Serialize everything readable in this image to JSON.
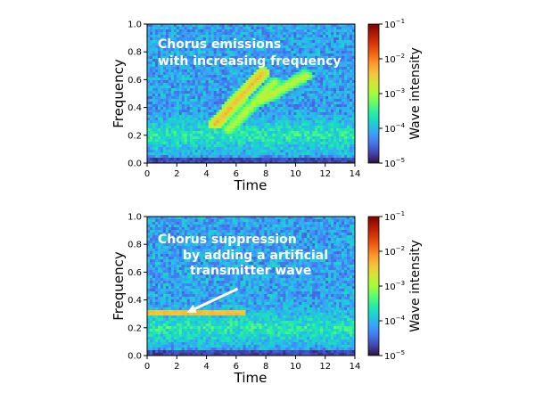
{
  "colors": {
    "colormap": [
      "#30123b",
      "#4145ab",
      "#4675ed",
      "#39a2fc",
      "#1bcfd4",
      "#24eca6",
      "#61fc6c",
      "#a4fc3b",
      "#d1e834",
      "#f3c63a",
      "#fe9b2d",
      "#f36315",
      "#d93806",
      "#b11901",
      "#7a0402"
    ],
    "annotation": "#ffffff"
  },
  "chart_data": [
    {
      "type": "heatmap",
      "xlabel": "Time",
      "ylabel": "Frequency",
      "xlim": [
        0,
        14
      ],
      "ylim": [
        0,
        1.0
      ],
      "xticks": [
        "0",
        "2",
        "4",
        "6",
        "8",
        "10",
        "12",
        "14"
      ],
      "yticks": [
        "0.0",
        "0.2",
        "0.4",
        "0.6",
        "0.8",
        "1.0"
      ],
      "annotation_lines": [
        "Chorus emissions",
        "with increasing frequency"
      ],
      "colorbar": {
        "label": "Wave intensity",
        "scale": "log",
        "range": [
          1e-05,
          0.1
        ],
        "tick_labels": [
          {
            "base": "10",
            "exp": "−1"
          },
          {
            "base": "10",
            "exp": "−2"
          },
          {
            "base": "10",
            "exp": "−3"
          },
          {
            "base": "10",
            "exp": "−4"
          },
          {
            "base": "10",
            "exp": "−5"
          }
        ]
      },
      "features": {
        "background_band": {
          "frequency_range": [
            0.05,
            0.35
          ],
          "log_intensity": -3.6
        },
        "chorus_elements": [
          {
            "t_start": 4.6,
            "f_start": 0.28,
            "t_end": 7.8,
            "f_end": 0.65,
            "log_intensity": -2.3
          },
          {
            "t_start": 5.5,
            "f_start": 0.24,
            "t_end": 8.6,
            "f_end": 0.58,
            "log_intensity": -2.8
          },
          {
            "t_start": 7.7,
            "f_start": 0.45,
            "t_end": 10.7,
            "f_end": 0.63,
            "log_intensity": -2.7
          }
        ]
      }
    },
    {
      "type": "heatmap",
      "xlabel": "Time",
      "ylabel": "Frequency",
      "xlim": [
        0,
        14
      ],
      "ylim": [
        0,
        1.0
      ],
      "xticks": [
        "0",
        "2",
        "4",
        "6",
        "8",
        "10",
        "12",
        "14"
      ],
      "yticks": [
        "0.0",
        "0.2",
        "0.4",
        "0.6",
        "0.8",
        "1.0"
      ],
      "annotation_lines": [
        "Chorus suppression",
        "by adding a artificial",
        "transmitter wave"
      ],
      "colorbar": {
        "label": "Wave intensity",
        "scale": "log",
        "range": [
          1e-05,
          0.1
        ],
        "tick_labels": [
          {
            "base": "10",
            "exp": "−1"
          },
          {
            "base": "10",
            "exp": "−2"
          },
          {
            "base": "10",
            "exp": "−3"
          },
          {
            "base": "10",
            "exp": "−4"
          },
          {
            "base": "10",
            "exp": "−5"
          }
        ]
      },
      "features": {
        "background_band": {
          "frequency_range": [
            0.05,
            0.35
          ],
          "log_intensity": -3.6
        },
        "transmitter_wave": {
          "t_start": 0,
          "t_end": 6.6,
          "frequency": 0.3,
          "log_intensity": -2.4
        },
        "arrow": {
          "from": [
            6.1,
            0.48
          ],
          "to": [
            2.9,
            0.32
          ]
        }
      }
    }
  ]
}
